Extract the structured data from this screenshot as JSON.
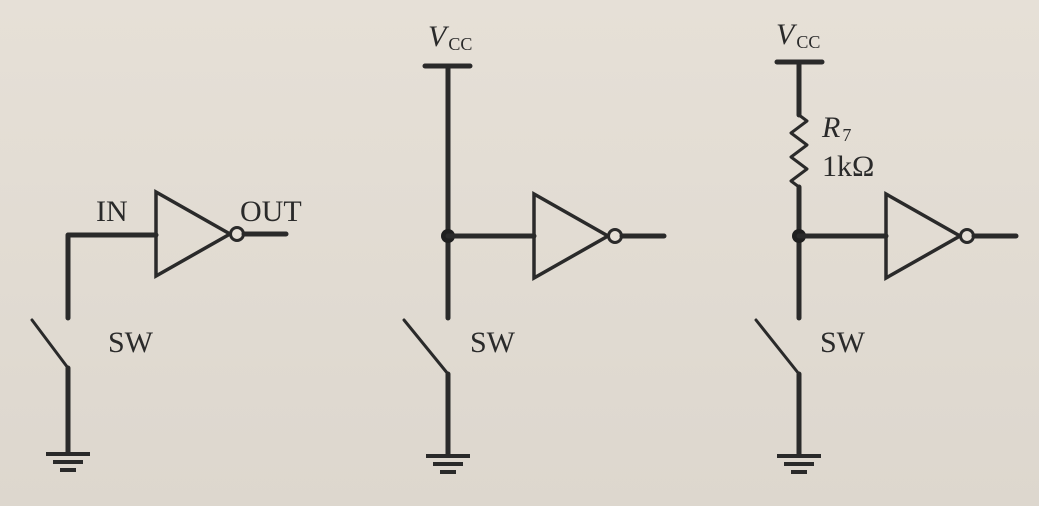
{
  "circuit_1": {
    "in_label": "IN",
    "out_label": "OUT",
    "switch_label": "SW"
  },
  "circuit_2": {
    "supply_label": "V",
    "supply_subscript": "CC",
    "switch_label": "SW"
  },
  "circuit_3": {
    "supply_label": "V",
    "supply_subscript": "CC",
    "resistor_label": "R",
    "resistor_subscript": "7",
    "resistor_value": "1kΩ",
    "switch_label": "SW"
  }
}
